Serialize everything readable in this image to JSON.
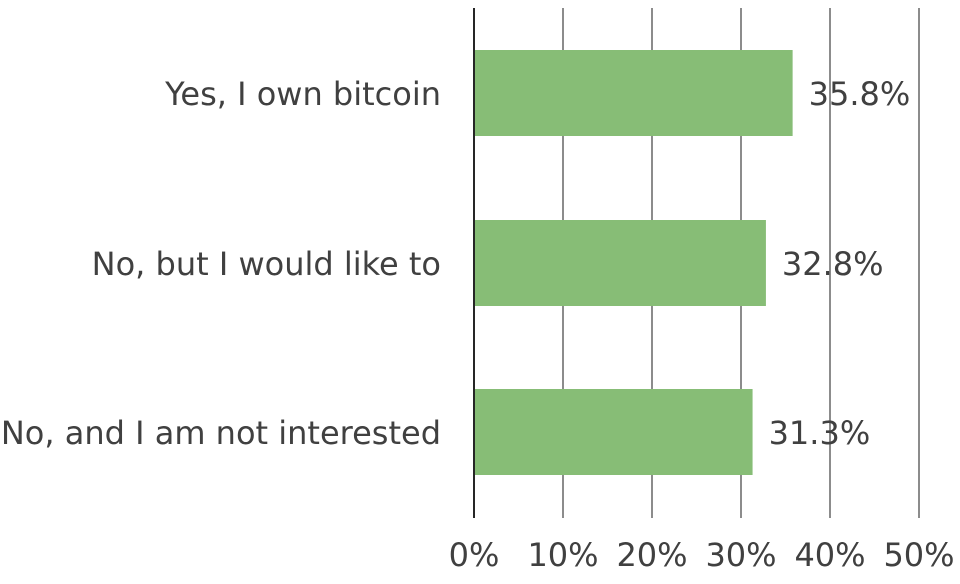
{
  "chart_data": {
    "type": "bar",
    "orientation": "horizontal",
    "categories": [
      "Yes, I own bitcoin",
      "No, but I would like to",
      "No, and I am not interested"
    ],
    "values": [
      35.8,
      32.8,
      31.3
    ],
    "value_labels": [
      "35.8%",
      "32.8%",
      "31.3%"
    ],
    "xlim": [
      0,
      50
    ],
    "x_ticks": [
      0,
      10,
      20,
      30,
      40,
      50
    ],
    "x_tick_labels": [
      "0%",
      "10%",
      "20%",
      "30%",
      "40%",
      "50%"
    ],
    "title": "",
    "xlabel": "",
    "ylabel": "",
    "grid": "vertical",
    "legend": "none",
    "colors": {
      "bar": "#87bd76",
      "gridline": "#8c8c8c",
      "axis": "#262626",
      "text": "#404040"
    }
  }
}
